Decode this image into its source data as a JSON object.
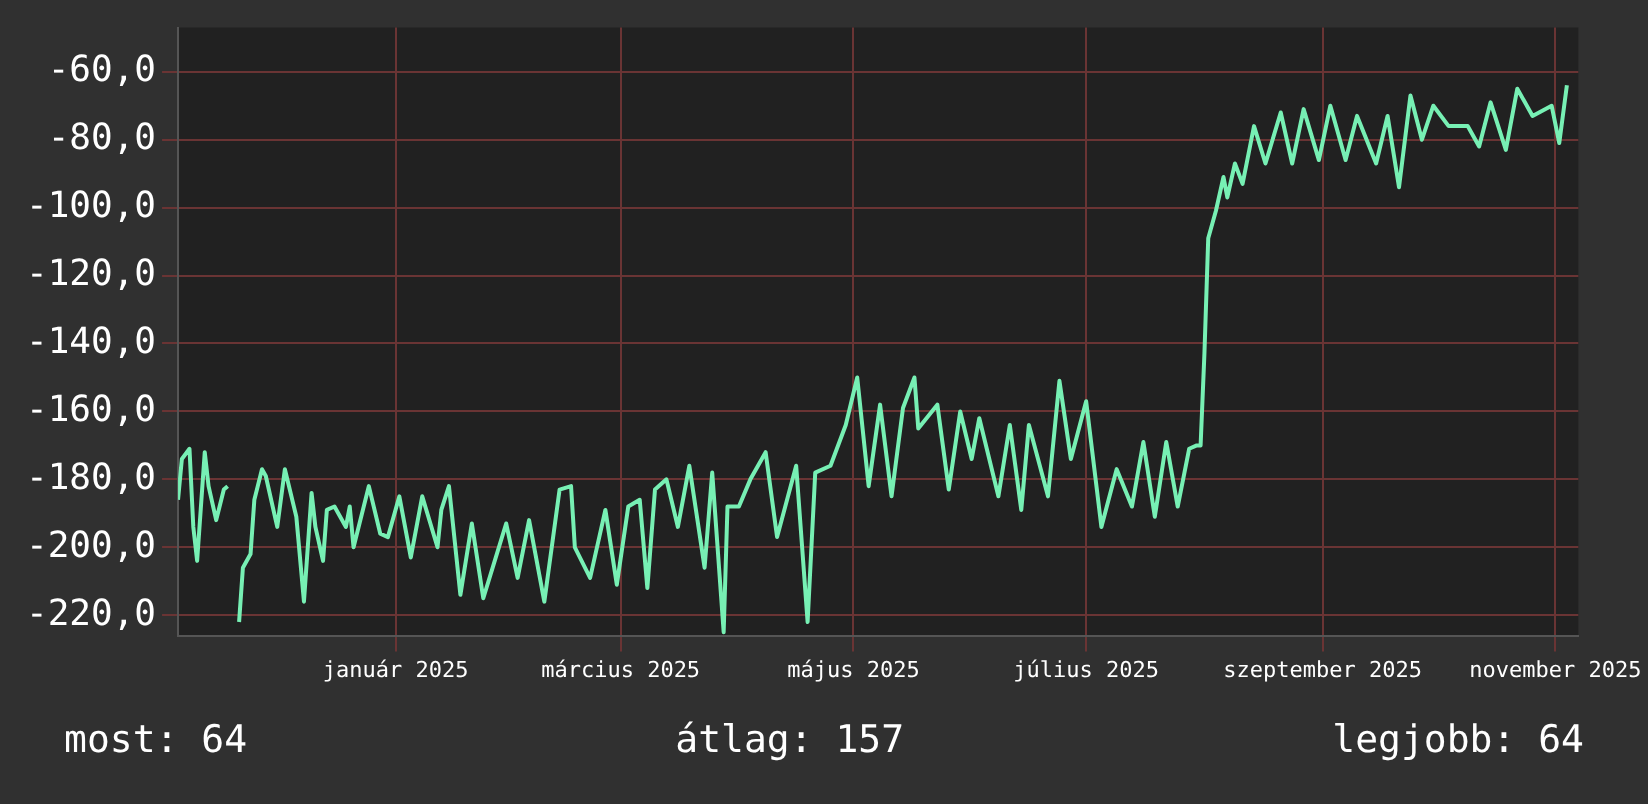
{
  "chart_data": {
    "type": "line",
    "x": [
      "2024-11-05",
      "2024-11-06",
      "2024-11-08",
      "2024-11-09",
      "2024-11-10",
      "2024-11-12",
      "2024-11-13",
      "2024-11-15",
      "2024-11-17",
      "2024-11-18",
      "2024-11-19",
      "2024-11-21",
      "2024-11-22",
      "2024-11-24",
      "2024-11-25",
      "2024-11-27",
      "2024-11-28",
      "2024-12-01",
      "2024-12-03",
      "2024-12-06",
      "2024-12-08",
      "2024-12-10",
      "2024-12-11",
      "2024-12-13",
      "2024-12-14",
      "2024-12-16",
      "2024-12-19",
      "2024-12-20",
      "2024-12-21",
      "2024-12-25",
      "2024-12-28",
      "2024-12-30",
      "2025-01-02",
      "2025-01-05",
      "2025-01-08",
      "2025-01-12",
      "2025-01-13",
      "2025-01-15",
      "2025-01-18",
      "2025-01-21",
      "2025-01-24",
      "2025-01-27",
      "2025-01-30",
      "2025-02-02",
      "2025-02-05",
      "2025-02-09",
      "2025-02-13",
      "2025-02-16",
      "2025-02-17",
      "2025-02-21",
      "2025-02-25",
      "2025-02-28",
      "2025-03-03",
      "2025-03-06",
      "2025-03-08",
      "2025-03-10",
      "2025-03-13",
      "2025-03-16",
      "2025-03-19",
      "2025-03-23",
      "2025-03-25",
      "2025-03-28",
      "2025-03-29",
      "2025-04-01",
      "2025-04-04",
      "2025-04-08",
      "2025-04-11",
      "2025-04-16",
      "2025-04-19",
      "2025-04-21",
      "2025-04-25",
      "2025-04-29",
      "2025-05-02",
      "2025-05-05",
      "2025-05-08",
      "2025-05-11",
      "2025-05-14",
      "2025-05-17",
      "2025-05-18",
      "2025-05-23",
      "2025-05-26",
      "2025-05-29",
      "2025-06-01",
      "2025-06-03",
      "2025-06-08",
      "2025-06-11",
      "2025-06-14",
      "2025-06-16",
      "2025-06-21",
      "2025-06-24",
      "2025-06-27",
      "2025-07-01",
      "2025-07-05",
      "2025-07-09",
      "2025-07-13",
      "2025-07-16",
      "2025-07-19",
      "2025-07-22",
      "2025-07-25",
      "2025-07-28",
      "2025-07-30",
      "2025-07-31",
      "2025-08-01",
      "2025-08-02",
      "2025-08-04",
      "2025-08-06",
      "2025-08-07",
      "2025-08-09",
      "2025-08-11",
      "2025-08-14",
      "2025-08-17",
      "2025-08-21",
      "2025-08-24",
      "2025-08-27",
      "2025-08-31",
      "2025-09-03",
      "2025-09-07",
      "2025-09-10",
      "2025-09-15",
      "2025-09-18",
      "2025-09-21",
      "2025-09-24",
      "2025-09-27",
      "2025-09-30",
      "2025-10-04",
      "2025-10-09",
      "2025-10-12",
      "2025-10-15",
      "2025-10-19",
      "2025-10-22",
      "2025-10-26",
      "2025-10-31",
      "2025-11-02",
      "2025-11-04"
    ],
    "series": [
      {
        "color": "#77f0b4",
        "values": [
          -186,
          -174,
          -171,
          -194,
          -204,
          -172,
          -182,
          -192,
          -183,
          -182,
          null,
          -222,
          -206,
          -202,
          -186,
          -177,
          -179,
          -194,
          -177,
          -191,
          -216,
          -184,
          -194,
          -204,
          -189,
          -188,
          -194,
          -188,
          -200,
          -182,
          -196,
          -197,
          -185,
          -203,
          -185,
          -200,
          -189,
          -182,
          -214,
          -193,
          -215,
          -204,
          -193,
          -209,
          -192,
          -216,
          -183,
          -182,
          -200,
          -209,
          -189,
          -211,
          -188,
          -186,
          -212,
          -183,
          -180,
          -194,
          -176,
          -206,
          -178,
          -225,
          -188,
          -188,
          -180,
          -172,
          -197,
          -176,
          -222,
          -178,
          -176,
          -164,
          -150,
          -182,
          -158,
          -185,
          -159,
          -150,
          -165,
          -158,
          -183,
          -160,
          -174,
          -162,
          -185,
          -164,
          -189,
          -164,
          -185,
          -151,
          -174,
          -157,
          -194,
          -177,
          -188,
          -169,
          -191,
          -169,
          -188,
          -171,
          -170,
          -170,
          -143,
          -109,
          -101,
          -91,
          -97,
          -87,
          -93,
          -76,
          -87,
          -72,
          -87,
          -71,
          -86,
          -70,
          -86,
          -73,
          -87,
          -73,
          -94,
          -67,
          -80,
          -70,
          -76,
          -76,
          -82,
          -69,
          -83,
          -65,
          -73,
          -70,
          -81,
          -64
        ]
      }
    ],
    "xlim": [
      "2024-11-05",
      "2025-11-07"
    ],
    "xticks": [
      {
        "value": "2025-01-01",
        "label": "január 2025"
      },
      {
        "value": "2025-03-01",
        "label": "március 2025"
      },
      {
        "value": "2025-05-01",
        "label": "május 2025"
      },
      {
        "value": "2025-07-01",
        "label": "július 2025"
      },
      {
        "value": "2025-09-01",
        "label": "szeptember 2025"
      },
      {
        "value": "2025-11-01",
        "label": "november 2025"
      }
    ],
    "ylim": [
      -226,
      -47
    ],
    "yticks": [
      {
        "value": -60,
        "label": "-60,0"
      },
      {
        "value": -80,
        "label": "-80,0"
      },
      {
        "value": -100,
        "label": "-100,0"
      },
      {
        "value": -120,
        "label": "-120,0"
      },
      {
        "value": -140,
        "label": "-140,0"
      },
      {
        "value": -160,
        "label": "-160,0"
      },
      {
        "value": -180,
        "label": "-180,0"
      },
      {
        "value": -200,
        "label": "-200,0"
      },
      {
        "value": -220,
        "label": "-220,0"
      }
    ],
    "grid": true,
    "legend": false,
    "marker": "none",
    "line_style": "solid",
    "annotations": [
      "most: 64",
      "átlag: 157",
      "legjobb: 64"
    ]
  }
}
